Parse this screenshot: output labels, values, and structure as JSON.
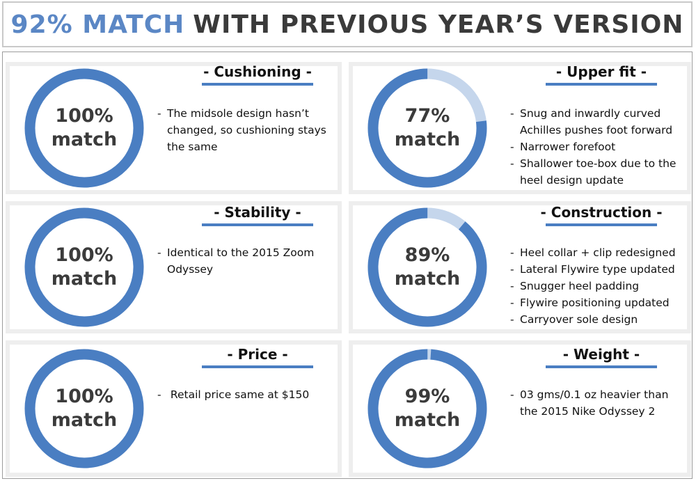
{
  "title": {
    "accent": "92% MATCH",
    "rest": "WITH PREVIOUS YEAR’S VERSION"
  },
  "colors": {
    "ring": "#4a7ec2",
    "ring_remainder": "#c5d6ec",
    "accent": "#5b87c5"
  },
  "chart_data": [
    {
      "type": "pie",
      "category": "- Cushioning -",
      "match_percent": 100,
      "label_value": "100%",
      "label_word": "match",
      "notes": [
        "The midsole design hasn’t changed, so cushioning stays the same"
      ]
    },
    {
      "type": "pie",
      "category": "- Upper fit -",
      "match_percent": 77,
      "label_value": "77%",
      "label_word": "match",
      "notes": [
        "Snug and inwardly curved Achilles pushes foot forward",
        "Narrower forefoot",
        "Shallower toe-box due to the heel design update"
      ]
    },
    {
      "type": "pie",
      "category": "- Stability -",
      "match_percent": 100,
      "label_value": "100%",
      "label_word": "match",
      "notes": [
        "Identical to the 2015 Zoom Odyssey"
      ]
    },
    {
      "type": "pie",
      "category": "- Construction -",
      "match_percent": 89,
      "label_value": "89%",
      "label_word": "match",
      "notes": [
        "Heel collar + clip redesigned",
        "Lateral Flywire type updated",
        "Snugger heel padding",
        "Flywire positioning updated",
        "Carryover sole design"
      ]
    },
    {
      "type": "pie",
      "category": "- Price -",
      "match_percent": 100,
      "label_value": "100%",
      "label_word": "match",
      "notes": [
        " Retail price same at $150"
      ]
    },
    {
      "type": "pie",
      "category": "- Weight -",
      "match_percent": 99,
      "label_value": "99%",
      "label_word": "match",
      "notes": [
        "03 gms/0.1 oz heavier than the 2015 Nike Odyssey 2"
      ]
    }
  ]
}
